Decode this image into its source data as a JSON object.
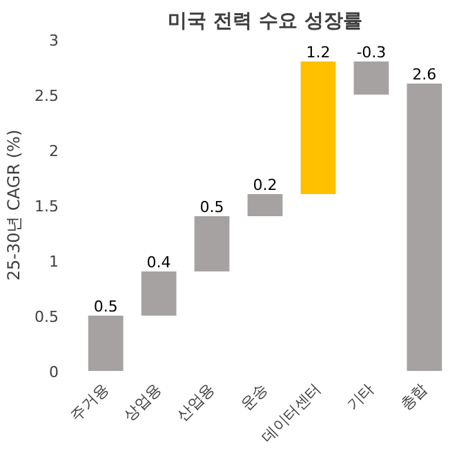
{
  "chart_data": {
    "type": "bar",
    "title": "미국 전력 수요 성장률",
    "ylabel": "25-30년 CAGR (%)",
    "categories": [
      "주거용",
      "상업용",
      "산업용",
      "운송",
      "데이터센터",
      "기타",
      "총합"
    ],
    "values": [
      0.5,
      0.4,
      0.5,
      0.2,
      1.2,
      -0.3,
      2.6
    ],
    "base": [
      0,
      0.5,
      0.9,
      1.4,
      1.6,
      2.8,
      0
    ],
    "colors": [
      "#a6a2a2",
      "#a6a2a2",
      "#a6a2a2",
      "#a6a2a2",
      "#ffc000",
      "#a6a2a2",
      "#a6a2a2"
    ],
    "ylim": [
      0,
      3
    ],
    "yticks": [
      0,
      0.5,
      1,
      1.5,
      2,
      2.5,
      3
    ],
    "data_labels": true,
    "grid": false
  }
}
